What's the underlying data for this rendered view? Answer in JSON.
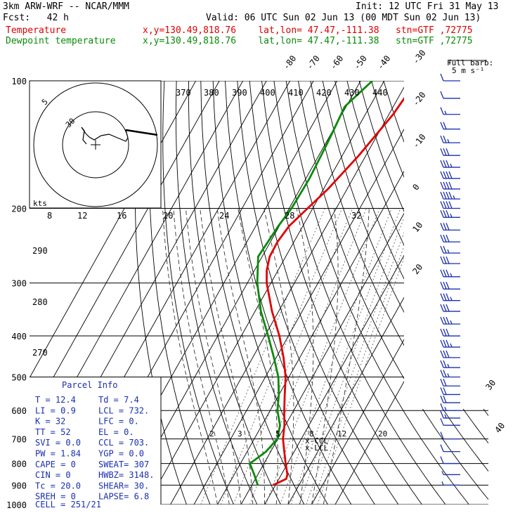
{
  "header": {
    "model": "3km ARW-WRF -- NCAR/MMM",
    "init": "Init: 12 UTC Fri 31 May 13",
    "fcst": "Fcst:   42 h",
    "valid": "Valid: 06 UTC Sun 02 Jun 13 (00 MDT Sun 02 Jun 13)",
    "temp_label": "Temperature",
    "dew_label": "Dewpoint temperature",
    "temp_loc": "x,y=130.49,818.76    lat,lon= 47.47,-111.38   stn=GTF ,72775",
    "dew_loc": "x,y=130.49,818.76    lat,lon= 47.47,-111.38   stn=GTF ,72775",
    "barb_key": "Full barb:",
    "barb_key_val": "5 m s⁻¹"
  },
  "colors": {
    "temperature": "#e00000",
    "dewpoint": "#0a8a0a",
    "text_blue": "#1a2fb0",
    "barb": "#1a2fb0"
  },
  "chart_data": {
    "type": "line",
    "title": "",
    "y_axis": "pressure (hPa), log scale",
    "pressure_levels": [
      100,
      200,
      300,
      400,
      500,
      600,
      700,
      800,
      900,
      1000
    ],
    "pressure_labels": [
      "100",
      "200",
      "300",
      "400",
      "500",
      "600",
      "700",
      "800",
      "900",
      "1000"
    ],
    "isotherm_labels": [
      "-80",
      "-70",
      "-60",
      "-50",
      "-40",
      "-30",
      "-20",
      "-10",
      "0",
      "10",
      "20",
      "30",
      "40"
    ],
    "theta_top_labels": [
      "370",
      "380",
      "390",
      "400",
      "410",
      "420",
      "430",
      "440"
    ],
    "theta_left_labels": [
      "290",
      "280",
      "270"
    ],
    "mixing_labels_mid": [
      "8",
      "12",
      "16",
      "20",
      "24",
      "28",
      "32"
    ],
    "mixing_labels_low": [
      "2",
      "3",
      "5",
      "8",
      "12",
      "20"
    ],
    "hodo": {
      "kts": "kts",
      "r1": "5",
      "r2": "30"
    },
    "ccl_label": "CCL",
    "lcl_label": "LCL",
    "series": [
      {
        "name": "Temperature",
        "points": [
          [
            100,
            -26.3
          ],
          [
            120,
            -28.2
          ],
          [
            150,
            -33.0
          ],
          [
            180,
            -38.1
          ],
          [
            200,
            -42.2
          ],
          [
            220,
            -45.8
          ],
          [
            240,
            -47.0
          ],
          [
            260,
            -46.8
          ],
          [
            280,
            -44.8
          ],
          [
            300,
            -41.8
          ],
          [
            350,
            -32.8
          ],
          [
            400,
            -23.8
          ],
          [
            450,
            -16.9
          ],
          [
            500,
            -11.4
          ],
          [
            550,
            -7.6
          ],
          [
            600,
            -4.0
          ],
          [
            650,
            -0.4
          ],
          [
            700,
            2.2
          ],
          [
            750,
            5.8
          ],
          [
            800,
            9.2
          ],
          [
            850,
            12.6
          ],
          [
            870,
            13.1
          ],
          [
            900,
            9.0
          ]
        ]
      },
      {
        "name": "Dewpoint temperature",
        "points": [
          [
            100,
            -45.0
          ],
          [
            115,
            -50.6
          ],
          [
            140,
            -49.3
          ],
          [
            170,
            -48.5
          ],
          [
            200,
            -49.0
          ],
          [
            220,
            -50.4
          ],
          [
            260,
            -51.7
          ],
          [
            300,
            -45.8
          ],
          [
            350,
            -37.5
          ],
          [
            400,
            -28.6
          ],
          [
            450,
            -21.0
          ],
          [
            500,
            -14.5
          ],
          [
            550,
            -10.1
          ],
          [
            600,
            -6.9
          ],
          [
            650,
            -2.3
          ],
          [
            700,
            -0.2
          ],
          [
            750,
            -2.0
          ],
          [
            800,
            -6.0
          ],
          [
            850,
            -1.5
          ],
          [
            900,
            2.5
          ]
        ]
      }
    ]
  },
  "parcel": {
    "title": "Parcel Info",
    "rows": [
      [
        "T  =    12.4",
        "Td =   7.4"
      ],
      [
        "LI =     0.9",
        "LCL =  732."
      ],
      [
        "K  =      32",
        "LFC =    0."
      ],
      [
        "TT =      52",
        "EL  =    0."
      ],
      [
        "SVI =    0.0",
        "CCL =  703."
      ],
      [
        "PW =    1.84",
        "YGP =   0.0"
      ],
      [
        "CAPE =     0",
        "SWEAT=  307"
      ],
      [
        "CIN =      0",
        "HWBZ= 3148."
      ],
      [
        "Tc =    20.0",
        "SHEAR=  30."
      ],
      [
        "SREH =     0",
        "LAPSE=  6.8"
      ]
    ],
    "cell": "CELL = 251/21"
  },
  "wind_barbs": [
    {
      "p": 100,
      "full": 1,
      "half": 0
    },
    {
      "p": 110,
      "full": 1,
      "half": 0
    },
    {
      "p": 120,
      "full": 1,
      "half": 1
    },
    {
      "p": 130,
      "full": 2,
      "half": 0
    },
    {
      "p": 140,
      "full": 2,
      "half": 1
    },
    {
      "p": 150,
      "full": 3,
      "half": 0
    },
    {
      "p": 160,
      "full": 3,
      "half": 1
    },
    {
      "p": 170,
      "full": 4,
      "half": 0
    },
    {
      "p": 180,
      "full": 4,
      "half": 0
    },
    {
      "p": 190,
      "full": 4,
      "half": 1
    },
    {
      "p": 200,
      "full": 4,
      "half": 0
    },
    {
      "p": 210,
      "full": 3,
      "half": 1
    },
    {
      "p": 225,
      "full": 3,
      "half": 0
    },
    {
      "p": 240,
      "full": 3,
      "half": 0
    },
    {
      "p": 255,
      "full": 2,
      "half": 1
    },
    {
      "p": 270,
      "full": 3,
      "half": 0
    },
    {
      "p": 290,
      "full": 3,
      "half": 1
    },
    {
      "p": 310,
      "full": 3,
      "half": 0
    },
    {
      "p": 330,
      "full": 3,
      "half": 1
    },
    {
      "p": 350,
      "full": 3,
      "half": 0
    },
    {
      "p": 375,
      "full": 3,
      "half": 1
    },
    {
      "p": 400,
      "full": 3,
      "half": 0
    },
    {
      "p": 425,
      "full": 3,
      "half": 1
    },
    {
      "p": 450,
      "full": 3,
      "half": 0
    },
    {
      "p": 475,
      "full": 2,
      "half": 1
    },
    {
      "p": 500,
      "full": 2,
      "half": 1
    },
    {
      "p": 525,
      "full": 2,
      "half": 0
    },
    {
      "p": 550,
      "full": 2,
      "half": 0
    },
    {
      "p": 575,
      "full": 2,
      "half": 0
    },
    {
      "p": 600,
      "full": 1,
      "half": 1
    },
    {
      "p": 625,
      "full": 1,
      "half": 1
    },
    {
      "p": 650,
      "full": 1,
      "half": 0
    },
    {
      "p": 700,
      "full": 1,
      "half": 0
    },
    {
      "p": 750,
      "full": 1,
      "half": 0
    },
    {
      "p": 800,
      "full": 1,
      "half": 0
    },
    {
      "p": 850,
      "full": 0,
      "half": 1
    },
    {
      "p": 900,
      "full": 0,
      "half": 1
    }
  ]
}
